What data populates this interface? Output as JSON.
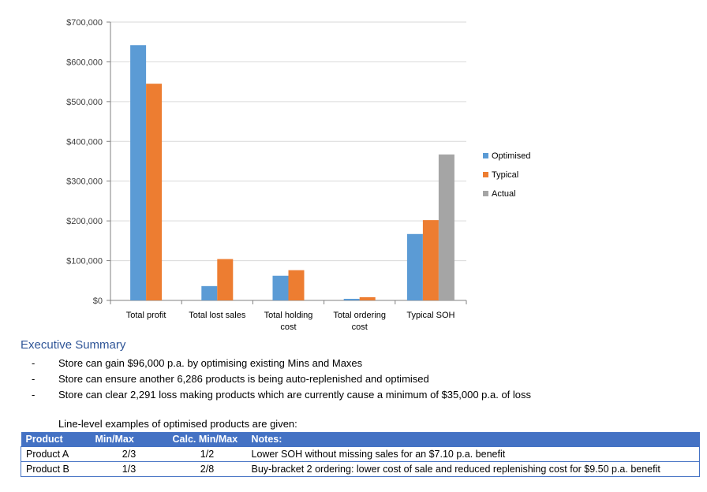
{
  "chart_data": {
    "type": "bar",
    "categories": [
      "Total profit",
      "Total lost sales",
      "Total holding cost",
      "Total ordering cost",
      "Typical SOH"
    ],
    "series": [
      {
        "name": "Optimised",
        "color": "#5b9bd5",
        "values": [
          642000,
          36000,
          62000,
          4000,
          167000
        ]
      },
      {
        "name": "Typical",
        "color": "#ed7d31",
        "values": [
          545000,
          104000,
          76000,
          8000,
          202000
        ]
      },
      {
        "name": "Actual",
        "color": "#a5a5a5",
        "values": [
          null,
          null,
          null,
          null,
          367000
        ]
      }
    ],
    "yticks": [
      "$0",
      "$100,000",
      "$200,000",
      "$300,000",
      "$400,000",
      "$500,000",
      "$600,000",
      "$700,000"
    ],
    "ylim": [
      0,
      700000
    ],
    "grid": true,
    "legend_position": "right"
  },
  "summary": {
    "heading": "Executive Summary",
    "bullets": [
      "Store can gain $96,000 p.a. by optimising existing Mins and Maxes",
      "Store can ensure another 6,286 products is being auto-replenished and optimised",
      "Store can clear 2,291 loss making products which are currently cause a minimum of $35,000 p.a. of loss"
    ],
    "bullet_marker": "-",
    "intro": "Line-level examples of optimised products are given:"
  },
  "table": {
    "headers": [
      "Product",
      "Min/Max",
      "Calc. Min/Max",
      "Notes:"
    ],
    "rows": [
      [
        "Product A",
        "2/3",
        "1/2",
        "Lower SOH without missing sales for an $7.10 p.a. benefit"
      ],
      [
        "Product B",
        "1/3",
        "2/8",
        "Buy-bracket 2 ordering: lower cost of sale and reduced replenishing cost for $9.50 p.a. benefit"
      ]
    ]
  }
}
